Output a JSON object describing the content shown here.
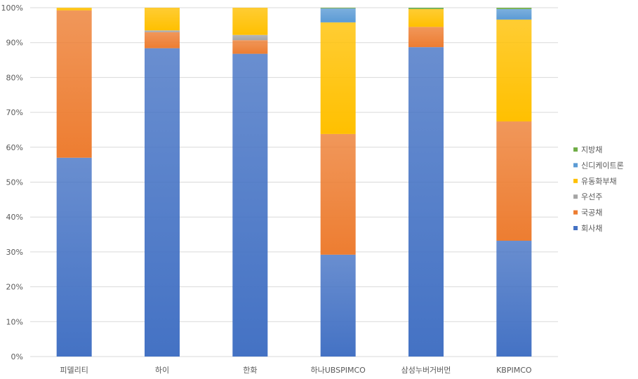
{
  "chart_data": {
    "type": "bar",
    "stacked": "percent",
    "title": "",
    "xlabel": "",
    "ylabel": "",
    "ylim": [
      0,
      100
    ],
    "yticks": [
      "0%",
      "10%",
      "20%",
      "30%",
      "40%",
      "50%",
      "60%",
      "70%",
      "80%",
      "90%",
      "100%"
    ],
    "grid": true,
    "legend_position": "right",
    "categories": [
      "피델리티",
      "하이",
      "한화",
      "하나UBSPIMCO",
      "삼성누버거버먼",
      "KBPIMCO"
    ],
    "series": [
      {
        "name": "회사채",
        "color": "#4472C4",
        "values": [
          57.0,
          88.4,
          86.8,
          29.2,
          88.7,
          33.2
        ]
      },
      {
        "name": "국공채",
        "color": "#ED7D31",
        "values": [
          42.25,
          4.6,
          3.9,
          34.6,
          5.8,
          34.2
        ]
      },
      {
        "name": "우선주",
        "color": "#A5A5A5",
        "values": [
          0,
          0.5,
          1.5,
          0,
          0,
          0
        ]
      },
      {
        "name": "유동화부채",
        "color": "#FFC000",
        "values": [
          0.75,
          6.5,
          7.8,
          32.0,
          5.1,
          29.2
        ]
      },
      {
        "name": "신디케이트론",
        "color": "#5B9BD5",
        "values": [
          0,
          0,
          0,
          4.0,
          0,
          3.0
        ]
      },
      {
        "name": "지방채",
        "color": "#70AD47",
        "values": [
          0,
          0,
          0,
          0.2,
          0.4,
          0.4
        ]
      }
    ]
  }
}
